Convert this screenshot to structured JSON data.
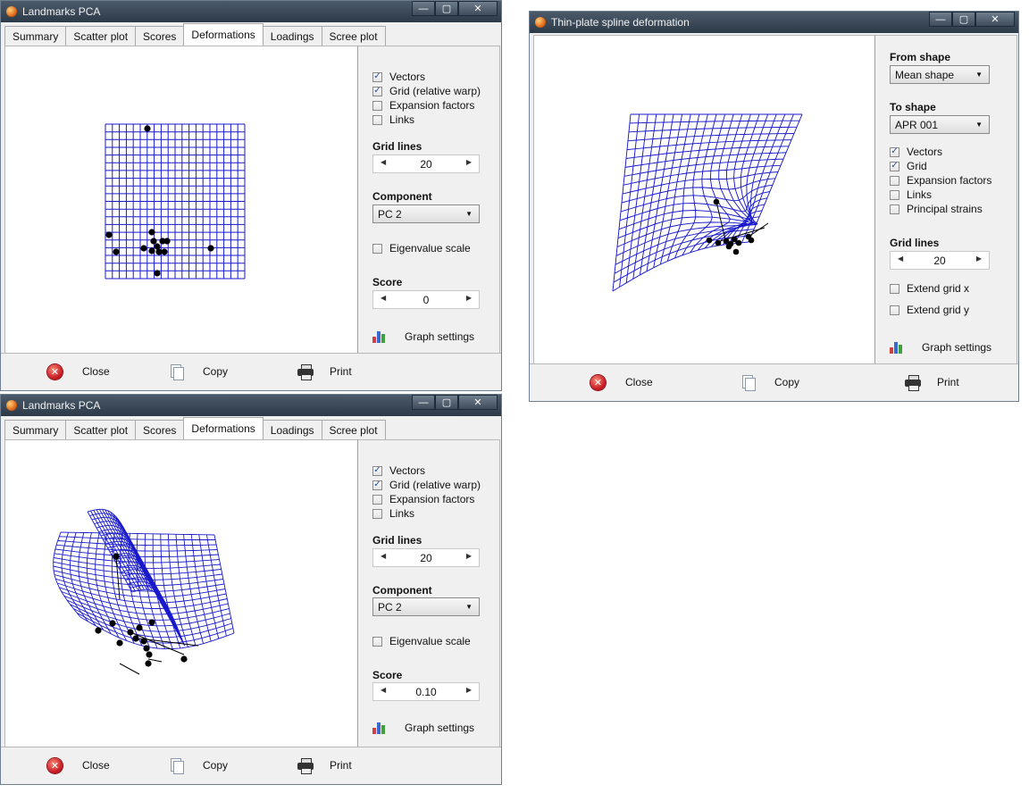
{
  "windows": [
    {
      "title": "Landmarks PCA",
      "tabs": [
        "Summary",
        "Scatter plot",
        "Scores",
        "Deformations",
        "Loadings",
        "Scree plot"
      ],
      "active_tab": "Deformations",
      "checkboxes": [
        {
          "label": "Vectors",
          "checked": true
        },
        {
          "label": "Grid (relative warp)",
          "checked": true
        },
        {
          "label": "Expansion factors",
          "checked": false
        },
        {
          "label": "Links",
          "checked": false
        }
      ],
      "grid_lines_label": "Grid lines",
      "grid_lines_value": "20",
      "component_label": "Component",
      "component_value": "PC 2",
      "eigenvalue_label": "Eigenvalue scale",
      "score_label": "Score",
      "score_value": "0",
      "graph_settings_label": "Graph settings",
      "buttons": {
        "close": "Close",
        "copy": "Copy",
        "print": "Print"
      }
    },
    {
      "title": "Landmarks PCA",
      "tabs": [
        "Summary",
        "Scatter plot",
        "Scores",
        "Deformations",
        "Loadings",
        "Scree plot"
      ],
      "active_tab": "Deformations",
      "checkboxes": [
        {
          "label": "Vectors",
          "checked": true
        },
        {
          "label": "Grid (relative warp)",
          "checked": true
        },
        {
          "label": "Expansion factors",
          "checked": false
        },
        {
          "label": "Links",
          "checked": false
        }
      ],
      "grid_lines_label": "Grid lines",
      "grid_lines_value": "20",
      "component_label": "Component",
      "component_value": "PC 2",
      "eigenvalue_label": "Eigenvalue scale",
      "score_label": "Score",
      "score_value": "0.10",
      "graph_settings_label": "Graph settings",
      "buttons": {
        "close": "Close",
        "copy": "Copy",
        "print": "Print"
      }
    },
    {
      "title": "Thin-plate spline deformation",
      "from_shape_label": "From shape",
      "from_shape_value": "Mean shape",
      "to_shape_label": "To shape",
      "to_shape_value": "APR 001",
      "checkboxes": [
        {
          "label": "Vectors",
          "checked": true
        },
        {
          "label": "Grid",
          "checked": true
        },
        {
          "label": "Expansion factors",
          "checked": false
        },
        {
          "label": "Links",
          "checked": false
        },
        {
          "label": "Principal strains",
          "checked": false
        }
      ],
      "grid_lines_label": "Grid lines",
      "grid_lines_value": "20",
      "extend_x_label": "Extend grid x",
      "extend_y_label": "Extend grid y",
      "graph_settings_label": "Graph settings",
      "buttons": {
        "close": "Close",
        "copy": "Copy",
        "print": "Print"
      }
    }
  ],
  "colors": {
    "grid": "#1a1acc",
    "landmark": "#000000",
    "titlebar": "#2d3a48"
  }
}
